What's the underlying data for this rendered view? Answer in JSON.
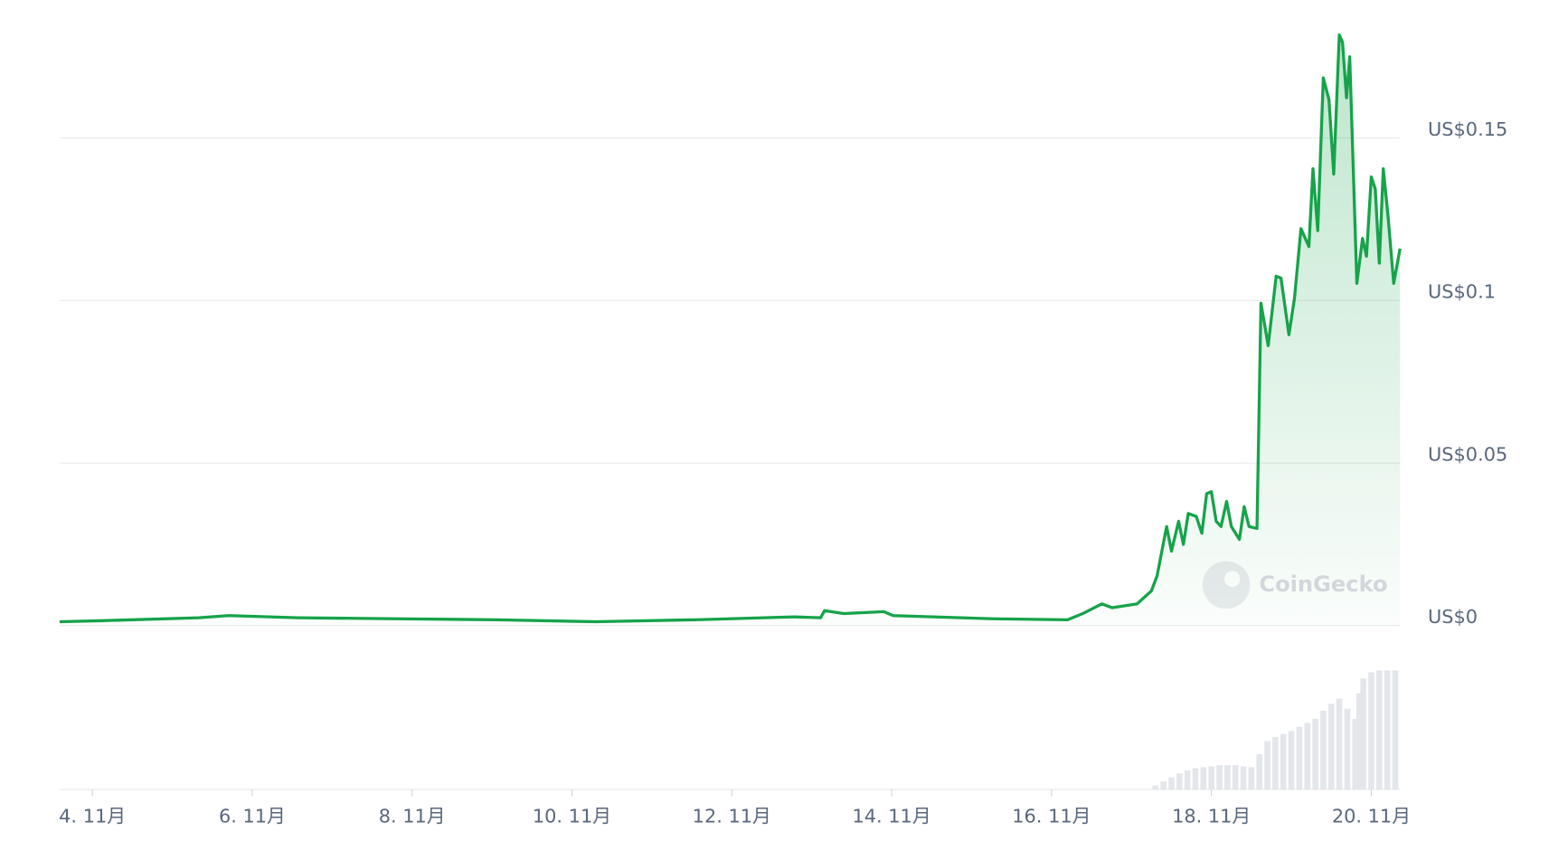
{
  "chart_data": {
    "type": "line",
    "series": [
      {
        "color": "#16a34a",
        "x": [
          3.59,
          4.09,
          5.33,
          5.7,
          6.57,
          7.81,
          9.06,
          10.3,
          11.54,
          12.78,
          13.11,
          13.16,
          13.4,
          13.9,
          14.02,
          15.27,
          16.2,
          16.39,
          16.63,
          16.76,
          17.07,
          17.25,
          17.32,
          17.44,
          17.5,
          17.59,
          17.65,
          17.71,
          17.81,
          17.88,
          17.94,
          18.0,
          18.06,
          18.12,
          18.19,
          18.25,
          18.35,
          18.41,
          18.47,
          18.57,
          18.62,
          18.71,
          18.81,
          18.87,
          18.97,
          19.04,
          19.12,
          19.22,
          19.27,
          19.33,
          19.4,
          19.47,
          19.53,
          19.6,
          19.64,
          19.69,
          19.73,
          19.82,
          19.89,
          19.94,
          20.0,
          20.05,
          20.1,
          20.15,
          20.21,
          20.28,
          20.36
        ],
        "values": [
          0.0012,
          0.0015,
          0.0024,
          0.0031,
          0.0024,
          0.0021,
          0.0018,
          0.0012,
          0.0018,
          0.0027,
          0.0024,
          0.0046,
          0.0037,
          0.0043,
          0.0031,
          0.0021,
          0.0018,
          0.0037,
          0.0067,
          0.0055,
          0.0067,
          0.0107,
          0.0153,
          0.0305,
          0.0229,
          0.0321,
          0.025,
          0.0345,
          0.0336,
          0.0284,
          0.0406,
          0.0412,
          0.0321,
          0.0305,
          0.0382,
          0.0305,
          0.0265,
          0.0366,
          0.0305,
          0.0299,
          0.0992,
          0.0861,
          0.1075,
          0.1069,
          0.0895,
          0.1008,
          0.1221,
          0.1166,
          0.1405,
          0.1215,
          0.1685,
          0.1618,
          0.1389,
          0.1817,
          0.1795,
          0.1624,
          0.175,
          0.1053,
          0.1191,
          0.1136,
          0.138,
          0.1344,
          0.1115,
          0.1405,
          0.1259,
          0.1053,
          0.116
        ]
      }
    ],
    "volume": {
      "color": "#e3e6ea",
      "x": [
        17.3,
        17.4,
        17.5,
        17.6,
        17.7,
        17.8,
        17.9,
        18.0,
        18.1,
        18.2,
        18.3,
        18.4,
        18.5,
        18.6,
        18.7,
        18.8,
        18.9,
        19.0,
        19.1,
        19.2,
        19.3,
        19.4,
        19.5,
        19.6,
        19.7,
        19.8,
        19.85,
        19.9,
        20.0,
        20.1,
        20.2,
        20.3
      ],
      "values": [
        4,
        8,
        12,
        16,
        19,
        21,
        22,
        23,
        24,
        24,
        24,
        23,
        22,
        35,
        48,
        52,
        55,
        58,
        62,
        66,
        70,
        78,
        85,
        90,
        80,
        70,
        95,
        110,
        116,
        118,
        118,
        118
      ]
    },
    "xlim": [
      3.59,
      20.36
    ],
    "ylim": [
      0,
      0.19
    ],
    "xticks": [
      {
        "value": 4,
        "label": "4. 11月"
      },
      {
        "value": 6,
        "label": "6. 11月"
      },
      {
        "value": 8,
        "label": "8. 11月"
      },
      {
        "value": 10,
        "label": "10. 11月"
      },
      {
        "value": 12,
        "label": "12. 11月"
      },
      {
        "value": 14,
        "label": "14. 11月"
      },
      {
        "value": 16,
        "label": "16. 11月"
      },
      {
        "value": 18,
        "label": "18. 11月"
      },
      {
        "value": 20,
        "label": "20. 11月"
      }
    ],
    "yticks": [
      {
        "value": 0,
        "label": "US$0"
      },
      {
        "value": 0.05,
        "label": "US$0.05"
      },
      {
        "value": 0.1,
        "label": "US$0.1"
      },
      {
        "value": 0.15,
        "label": "US$0.15"
      }
    ],
    "grid": true,
    "watermark": "CoinGecko"
  }
}
